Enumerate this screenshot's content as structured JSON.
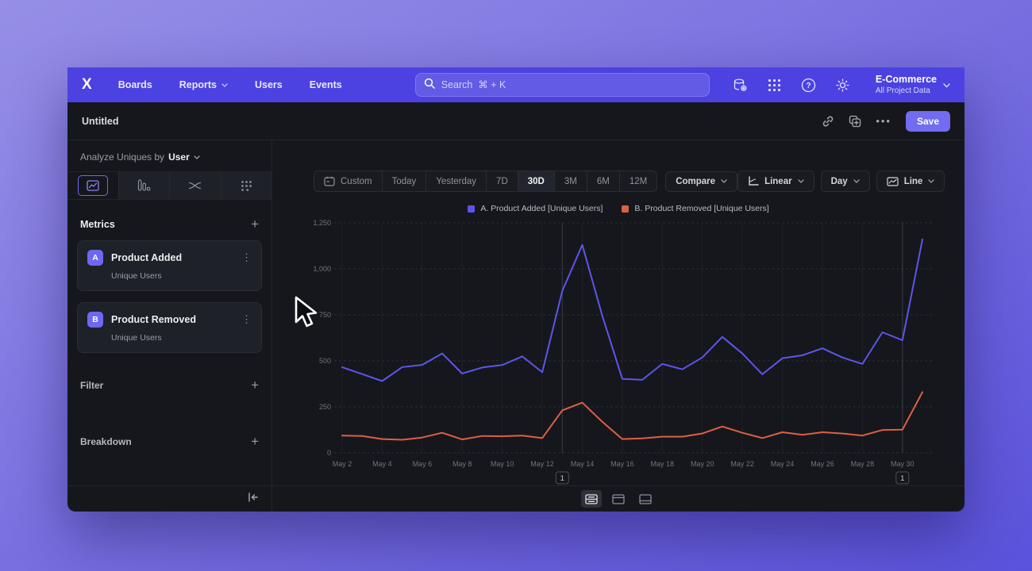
{
  "topnav": {
    "items": [
      {
        "label": "Boards",
        "has_chevron": false
      },
      {
        "label": "Reports",
        "has_chevron": true
      },
      {
        "label": "Users",
        "has_chevron": false
      },
      {
        "label": "Events",
        "has_chevron": false
      }
    ],
    "search": {
      "placeholder": "Search  ⌘ + K"
    },
    "project": {
      "name": "E-Commerce",
      "scope": "All Project Data"
    }
  },
  "toolbar": {
    "title": "Untitled",
    "save_label": "Save"
  },
  "sidebar": {
    "analyze_prefix": "Analyze Uniques by",
    "analyze_value": "User",
    "metrics_title": "Metrics",
    "metrics": [
      {
        "badge": "A",
        "name": "Product Added",
        "subtitle": "Unique Users"
      },
      {
        "badge": "B",
        "name": "Product Removed",
        "subtitle": "Unique Users"
      }
    ],
    "filter_title": "Filter",
    "breakdown_title": "Breakdown"
  },
  "controls": {
    "ranges": [
      "Custom",
      "Today",
      "Yesterday",
      "7D",
      "30D",
      "3M",
      "6M",
      "12M"
    ],
    "active_range": "30D",
    "compare_label": "Compare",
    "scale_label": "Linear",
    "granularity_label": "Day",
    "chart_type_label": "Line"
  },
  "chart_data": {
    "type": "line",
    "ylim": [
      0,
      1250
    ],
    "ytick_step": 250,
    "grid": "horizontal-dashed",
    "legend_position": "top-center",
    "categories": [
      "May 2",
      "May 3",
      "May 4",
      "May 5",
      "May 6",
      "May 7",
      "May 8",
      "May 9",
      "May 10",
      "May 11",
      "May 12",
      "May 13",
      "May 14",
      "May 15",
      "May 16",
      "May 17",
      "May 18",
      "May 19",
      "May 20",
      "May 21",
      "May 22",
      "May 23",
      "May 24",
      "May 25",
      "May 26",
      "May 27",
      "May 28",
      "May 29",
      "May 30",
      "May 31"
    ],
    "xtick_indices": [
      0,
      2,
      4,
      6,
      8,
      10,
      12,
      14,
      16,
      18,
      20,
      22,
      24,
      26,
      28
    ],
    "series": [
      {
        "name": "A. Product Added [Unique Users]",
        "color": "#5d55ea",
        "values": [
          465,
          428,
          390,
          466,
          478,
          540,
          431,
          464,
          477,
          524,
          438,
          880,
          1130,
          745,
          402,
          397,
          483,
          454,
          518,
          630,
          540,
          427,
          514,
          530,
          568,
          518,
          483,
          655,
          612,
          1160
        ]
      },
      {
        "name": "B. Product Removed [Unique Users]",
        "color": "#dc6046",
        "values": [
          94,
          92,
          75,
          71,
          83,
          109,
          73,
          92,
          90,
          94,
          80,
          231,
          273,
          169,
          75,
          79,
          88,
          88,
          105,
          143,
          109,
          80,
          112,
          98,
          112,
          105,
          94,
          124,
          126,
          330
        ]
      }
    ],
    "annotations": [
      {
        "index": 11,
        "label": "1"
      },
      {
        "index": 28,
        "label": "1"
      }
    ]
  }
}
